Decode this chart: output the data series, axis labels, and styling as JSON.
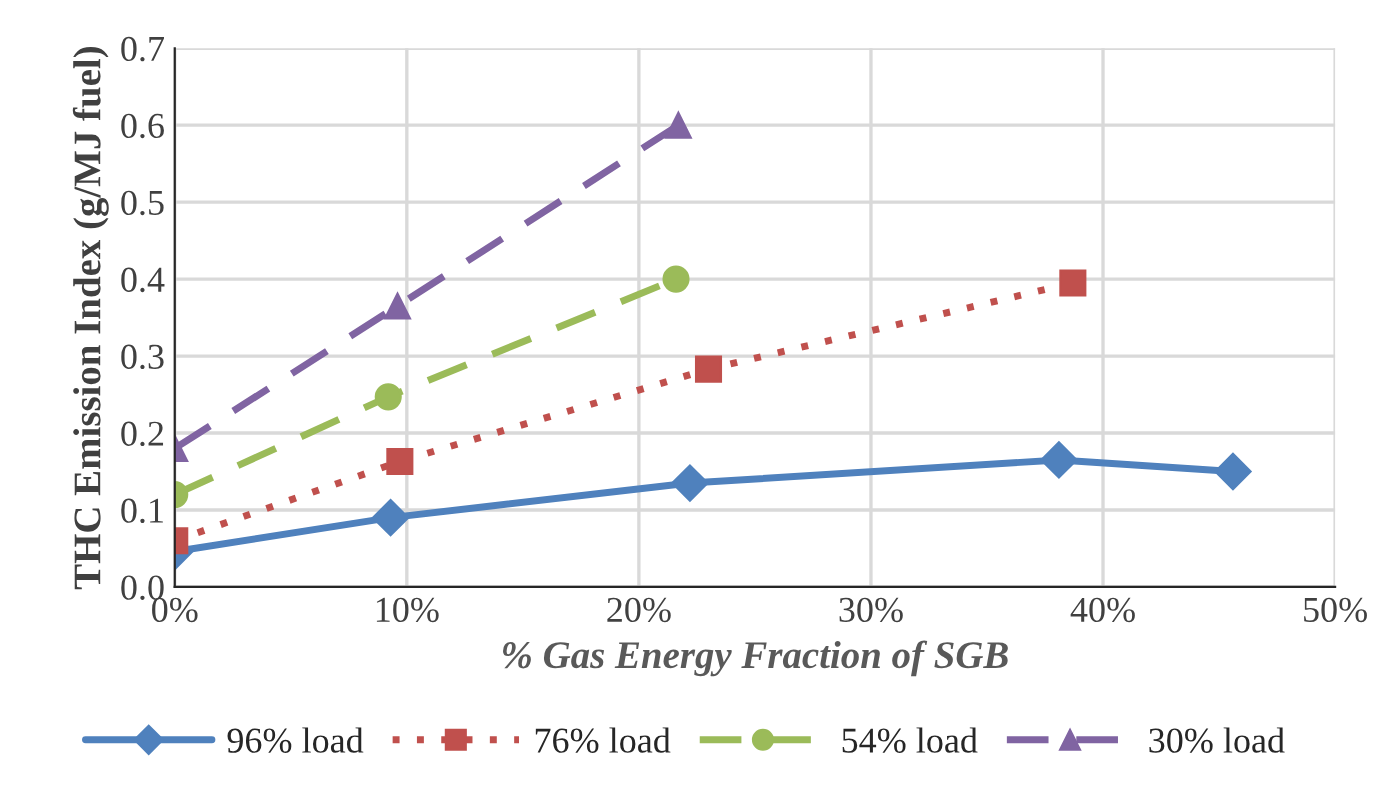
{
  "chart_data": {
    "type": "line",
    "xlabel": "% Gas Energy Fraction of SGB",
    "ylabel": "THC Emission Index (g/MJ fuel)",
    "series": [
      {
        "name": "96% load",
        "color": "#4f81bd",
        "marker": "diamond",
        "line_style": "solid",
        "x": [
          0,
          9.3,
          22.2,
          38.1,
          45.6
        ],
        "values": [
          0.046,
          0.09,
          0.135,
          0.165,
          0.15
        ]
      },
      {
        "name": "76% load",
        "color": "#c0504d",
        "marker": "square",
        "line_style": "dotted",
        "x": [
          0,
          9.7,
          23.0,
          38.7
        ],
        "values": [
          0.06,
          0.163,
          0.283,
          0.395
        ]
      },
      {
        "name": "54% load",
        "color": "#9bbb59",
        "marker": "circle",
        "line_style": "dashed",
        "x": [
          0,
          9.2,
          21.6
        ],
        "values": [
          0.12,
          0.247,
          0.4
        ]
      },
      {
        "name": "30% load",
        "color": "#8064a2",
        "marker": "triangle",
        "line_style": "dashed",
        "x": [
          0,
          9.6,
          21.7
        ],
        "values": [
          0.18,
          0.365,
          0.6
        ]
      }
    ],
    "xlim": [
      0,
      50
    ],
    "xticks": [
      {
        "value": 0,
        "label": "0%"
      },
      {
        "value": 10,
        "label": "10%"
      },
      {
        "value": 20,
        "label": "20%"
      },
      {
        "value": 30,
        "label": "30%"
      },
      {
        "value": 40,
        "label": "40%"
      },
      {
        "value": 50,
        "label": "50%"
      }
    ],
    "ylim": [
      0,
      0.7
    ],
    "yticks": [
      {
        "value": 0,
        "label": "0.0"
      },
      {
        "value": 0.1,
        "label": "0.1"
      },
      {
        "value": 0.2,
        "label": "0.2"
      },
      {
        "value": 0.3,
        "label": "0.3"
      },
      {
        "value": 0.4,
        "label": "0.4"
      },
      {
        "value": 0.5,
        "label": "0.5"
      },
      {
        "value": 0.6,
        "label": "0.6"
      },
      {
        "value": 0.7,
        "label": "0.7"
      }
    ],
    "grid": true,
    "legend": "bottom"
  }
}
